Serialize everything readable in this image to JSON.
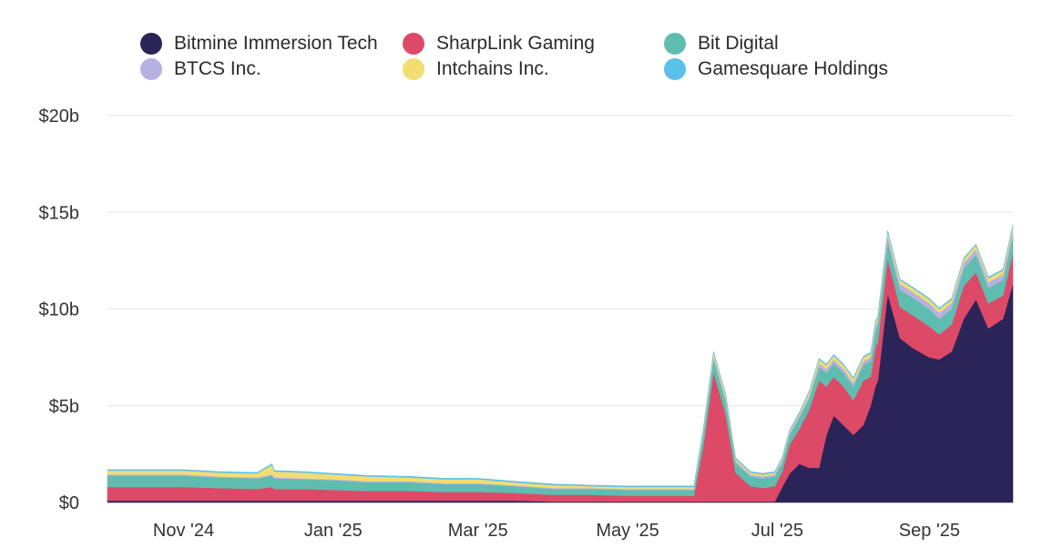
{
  "chart_data": {
    "type": "area",
    "stacked": true,
    "legend": {
      "position": "top"
    },
    "grid": true,
    "xlabel": "",
    "ylabel": "",
    "ylim": [
      0,
      20
    ],
    "yticks": [
      0,
      5,
      10,
      15,
      20
    ],
    "ytick_labels": [
      "$0",
      "$5b",
      "$10b",
      "$15b",
      "$20b"
    ],
    "xlim": [
      "2024-10-01",
      "2025-10-05"
    ],
    "xticks": [
      "2024-11-01",
      "2025-01-01",
      "2025-03-01",
      "2025-05-01",
      "2025-07-01",
      "2025-09-01"
    ],
    "xtick_labels": [
      "Nov '24",
      "Jan '25",
      "Mar '25",
      "May '25",
      "Jul '25",
      "Sep '25"
    ],
    "x": [
      "2024-10-01",
      "2024-10-15",
      "2024-11-01",
      "2024-11-15",
      "2024-12-01",
      "2024-12-07",
      "2024-12-08",
      "2024-12-20",
      "2025-01-01",
      "2025-01-15",
      "2025-02-01",
      "2025-02-15",
      "2025-03-01",
      "2025-03-15",
      "2025-04-01",
      "2025-04-15",
      "2025-05-01",
      "2025-05-15",
      "2025-05-25",
      "2025-05-28",
      "2025-06-01",
      "2025-06-05",
      "2025-06-10",
      "2025-06-14",
      "2025-06-20",
      "2025-06-25",
      "2025-06-30",
      "2025-07-03",
      "2025-07-06",
      "2025-07-10",
      "2025-07-14",
      "2025-07-18",
      "2025-07-21",
      "2025-07-24",
      "2025-07-28",
      "2025-08-01",
      "2025-08-05",
      "2025-08-08",
      "2025-08-10",
      "2025-08-11",
      "2025-08-15",
      "2025-08-20",
      "2025-08-25",
      "2025-09-01",
      "2025-09-05",
      "2025-09-10",
      "2025-09-15",
      "2025-09-20",
      "2025-09-25",
      "2025-10-01",
      "2025-10-05"
    ],
    "series": [
      {
        "name": "Bitmine Immersion Tech",
        "color": "#2a2458",
        "values": [
          0.1,
          0.1,
          0.1,
          0.1,
          0.1,
          0.1,
          0.1,
          0.1,
          0.1,
          0.1,
          0.1,
          0.1,
          0.1,
          0.1,
          0.05,
          0.05,
          0.05,
          0.05,
          0.05,
          0.05,
          0.05,
          0.05,
          0.05,
          0.05,
          0.05,
          0.05,
          0.05,
          0.8,
          1.5,
          2.0,
          1.8,
          1.8,
          3.5,
          4.5,
          4.0,
          3.5,
          4.0,
          5.0,
          6.0,
          6.3,
          10.8,
          8.5,
          8.0,
          7.5,
          7.4,
          7.8,
          9.5,
          10.5,
          9.0,
          9.5,
          11.3
        ]
      },
      {
        "name": "SharpLink Gaming",
        "color": "#dd4a68",
        "values": [
          0.7,
          0.7,
          0.7,
          0.65,
          0.6,
          0.7,
          0.6,
          0.6,
          0.55,
          0.5,
          0.5,
          0.45,
          0.45,
          0.4,
          0.35,
          0.35,
          0.3,
          0.3,
          0.3,
          0.3,
          3.0,
          6.7,
          4.5,
          1.5,
          0.8,
          0.7,
          0.8,
          0.8,
          1.5,
          1.8,
          3.0,
          4.5,
          2.5,
          2.0,
          2.0,
          1.8,
          2.3,
          1.5,
          2.0,
          2.0,
          1.8,
          1.6,
          1.7,
          1.6,
          1.3,
          1.4,
          1.7,
          1.4,
          1.3,
          1.2,
          1.6
        ]
      },
      {
        "name": "Bit Digital",
        "color": "#5fbdb0",
        "values": [
          0.6,
          0.6,
          0.6,
          0.55,
          0.55,
          0.6,
          0.55,
          0.5,
          0.5,
          0.45,
          0.45,
          0.4,
          0.4,
          0.35,
          0.3,
          0.3,
          0.3,
          0.3,
          0.3,
          0.3,
          0.6,
          0.7,
          0.7,
          0.5,
          0.5,
          0.5,
          0.5,
          0.5,
          0.5,
          0.6,
          0.6,
          0.7,
          0.7,
          0.7,
          0.7,
          0.7,
          0.8,
          0.8,
          0.9,
          0.9,
          0.9,
          0.9,
          0.9,
          0.9,
          0.8,
          0.8,
          0.9,
          0.9,
          0.8,
          0.8,
          0.9
        ]
      },
      {
        "name": "BTCS Inc.",
        "color": "#b6b1e0",
        "values": [
          0.05,
          0.05,
          0.05,
          0.05,
          0.05,
          0.05,
          0.05,
          0.05,
          0.05,
          0.05,
          0.05,
          0.05,
          0.05,
          0.05,
          0.05,
          0.05,
          0.05,
          0.05,
          0.05,
          0.05,
          0.1,
          0.1,
          0.1,
          0.1,
          0.1,
          0.1,
          0.1,
          0.1,
          0.1,
          0.1,
          0.1,
          0.2,
          0.2,
          0.2,
          0.2,
          0.2,
          0.2,
          0.2,
          0.2,
          0.2,
          0.3,
          0.3,
          0.3,
          0.3,
          0.3,
          0.3,
          0.3,
          0.3,
          0.3,
          0.3,
          0.3
        ]
      },
      {
        "name": "Intchains Inc.",
        "color": "#f2dd72",
        "values": [
          0.2,
          0.2,
          0.2,
          0.2,
          0.2,
          0.5,
          0.3,
          0.3,
          0.25,
          0.25,
          0.2,
          0.2,
          0.2,
          0.15,
          0.15,
          0.1,
          0.1,
          0.1,
          0.1,
          0.1,
          0.15,
          0.2,
          0.2,
          0.1,
          0.1,
          0.1,
          0.1,
          0.1,
          0.1,
          0.1,
          0.2,
          0.2,
          0.2,
          0.2,
          0.2,
          0.2,
          0.2,
          0.2,
          0.2,
          0.2,
          0.2,
          0.2,
          0.2,
          0.2,
          0.2,
          0.2,
          0.2,
          0.2,
          0.2,
          0.2,
          0.2
        ]
      },
      {
        "name": "Gamesquare Holdings",
        "color": "#5bc0eb",
        "values": [
          0.05,
          0.05,
          0.05,
          0.05,
          0.05,
          0.05,
          0.05,
          0.05,
          0.05,
          0.05,
          0.05,
          0.05,
          0.05,
          0.05,
          0.05,
          0.05,
          0.05,
          0.05,
          0.05,
          0.05,
          0.05,
          0.05,
          0.05,
          0.05,
          0.05,
          0.05,
          0.05,
          0.05,
          0.05,
          0.05,
          0.05,
          0.05,
          0.05,
          0.05,
          0.05,
          0.05,
          0.05,
          0.05,
          0.05,
          0.05,
          0.05,
          0.05,
          0.05,
          0.05,
          0.05,
          0.05,
          0.05,
          0.05,
          0.05,
          0.05,
          0.05
        ]
      }
    ]
  }
}
